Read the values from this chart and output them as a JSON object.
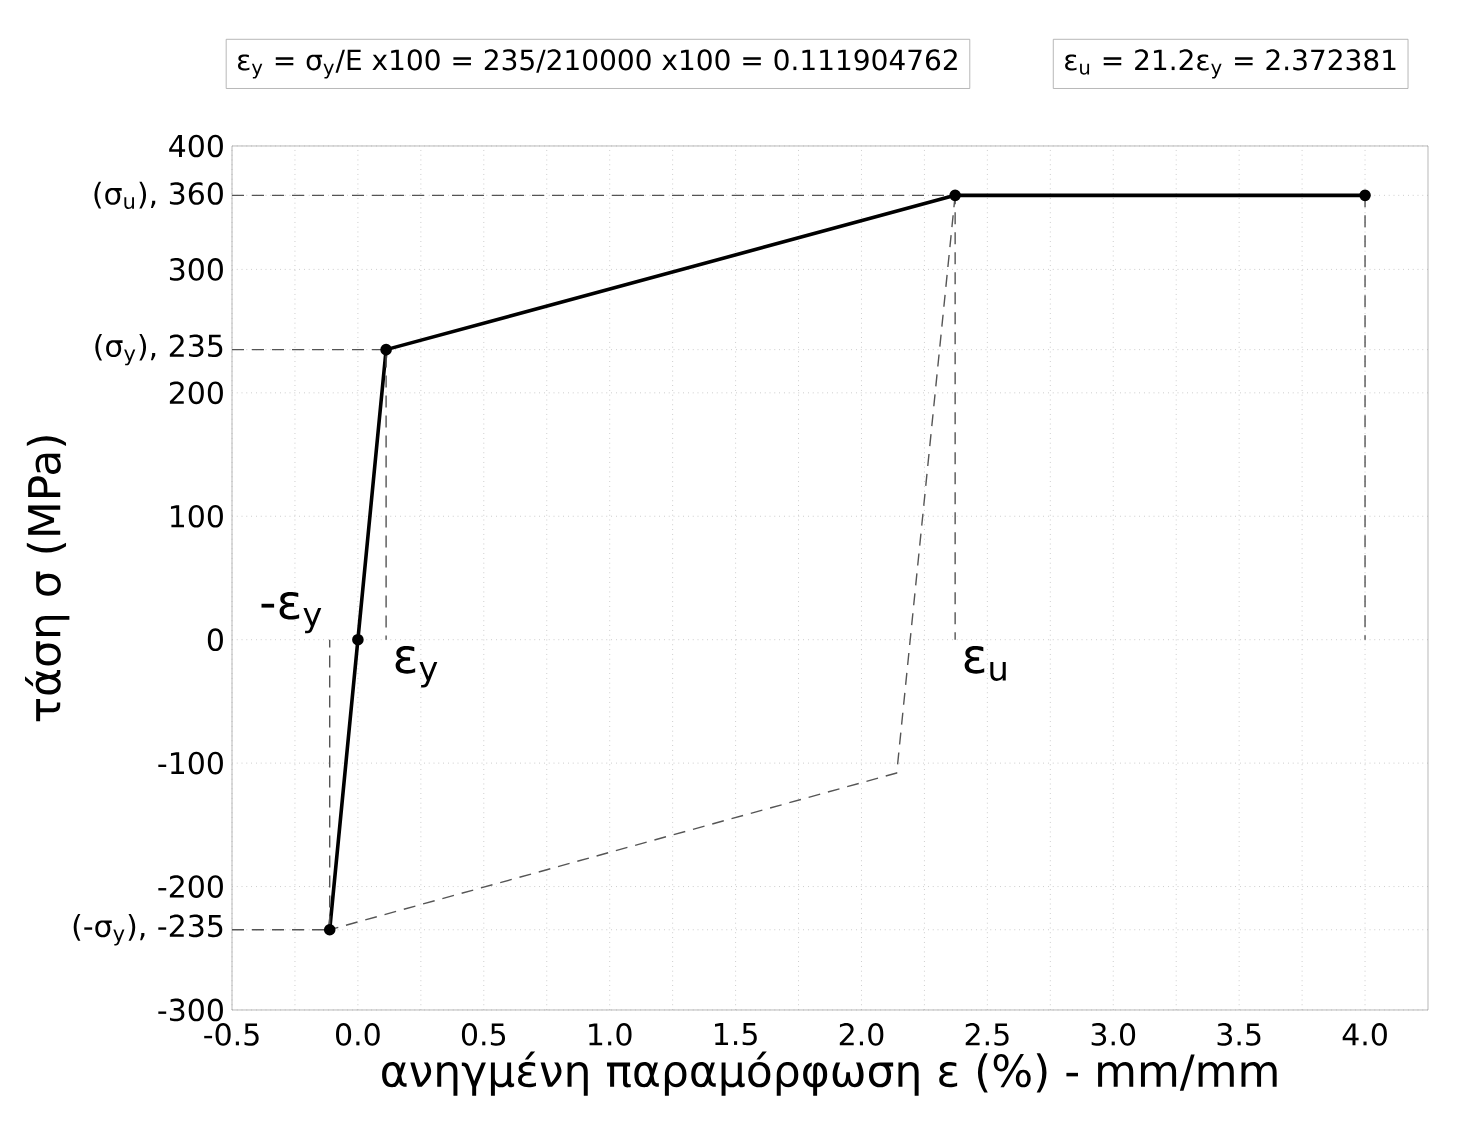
{
  "chart_data": {
    "type": "line",
    "xlabel": "ανηγμένη παραμόρφωση ε (%) - mm/mm",
    "ylabel": "τάση σ (MPa)",
    "xlim": [
      -0.5,
      4.25
    ],
    "ylim": [
      -300,
      400
    ],
    "xticks": [
      -0.5,
      {
        "value": 0,
        "label": "0.0"
      },
      0.5,
      {
        "value": 1,
        "label": "1.0"
      },
      1.5,
      {
        "value": 2,
        "label": "2.0"
      },
      2.5,
      {
        "value": 3,
        "label": "3.0"
      },
      3.5,
      {
        "value": 4,
        "label": "4.0"
      }
    ],
    "yticks": [
      -300,
      {
        "value": -235,
        "label": "(-σ$_{y}$), -235"
      },
      -200,
      -100,
      0,
      100,
      200,
      {
        "value": 235,
        "label": "(σ$_{y}$), 235"
      },
      300,
      {
        "value": 360,
        "label": "(σ$_{u}$), 360"
      },
      400
    ],
    "grid": true,
    "series": [
      {
        "color": "#000000",
        "marker": "circle",
        "line_style": "solid",
        "x": [
          -0.112,
          0,
          0.112,
          2.372,
          4.0
        ],
        "values": [
          -235,
          0,
          235,
          360,
          360
        ]
      },
      {
        "color": "#555555",
        "marker": "none",
        "line_style": "dashed",
        "x": [
          2.372,
          2.14,
          -0.112
        ],
        "values": [
          360,
          -108,
          -235
        ]
      },
      {
        "color": "#555555",
        "marker": "none",
        "line_style": "dashed",
        "x": [
          -0.5,
          2.372,
          2.372
        ],
        "values": [
          360,
          360,
          0
        ]
      },
      {
        "color": "#555555",
        "marker": "none",
        "line_style": "dashed",
        "x": [
          -0.5,
          0.112,
          0.112
        ],
        "values": [
          235,
          235,
          0
        ]
      },
      {
        "color": "#555555",
        "marker": "none",
        "line_style": "dashed",
        "x": [
          -0.5,
          -0.112,
          -0.112
        ],
        "values": [
          -235,
          -235,
          0
        ]
      },
      {
        "color": "#555555",
        "marker": "none",
        "line_style": "dashed",
        "x": [
          4.0,
          4.0
        ],
        "values": [
          360,
          0
        ]
      }
    ],
    "annotations": [
      "ε$_{y}$ = σ$_{y}$/E x100 = 235/210000 x100 = 0.111904762",
      "ε$_{u}$ = 21.2ε$_{y}$ = 2.372381",
      {
        "text": "-ε$_{y}$",
        "x": -0.112,
        "y": 0
      },
      {
        "text": "ε$_{y}$",
        "x": 0.112,
        "y": 0
      },
      {
        "text": "ε$_{u}$",
        "x": 2.372,
        "y": 0
      }
    ]
  }
}
